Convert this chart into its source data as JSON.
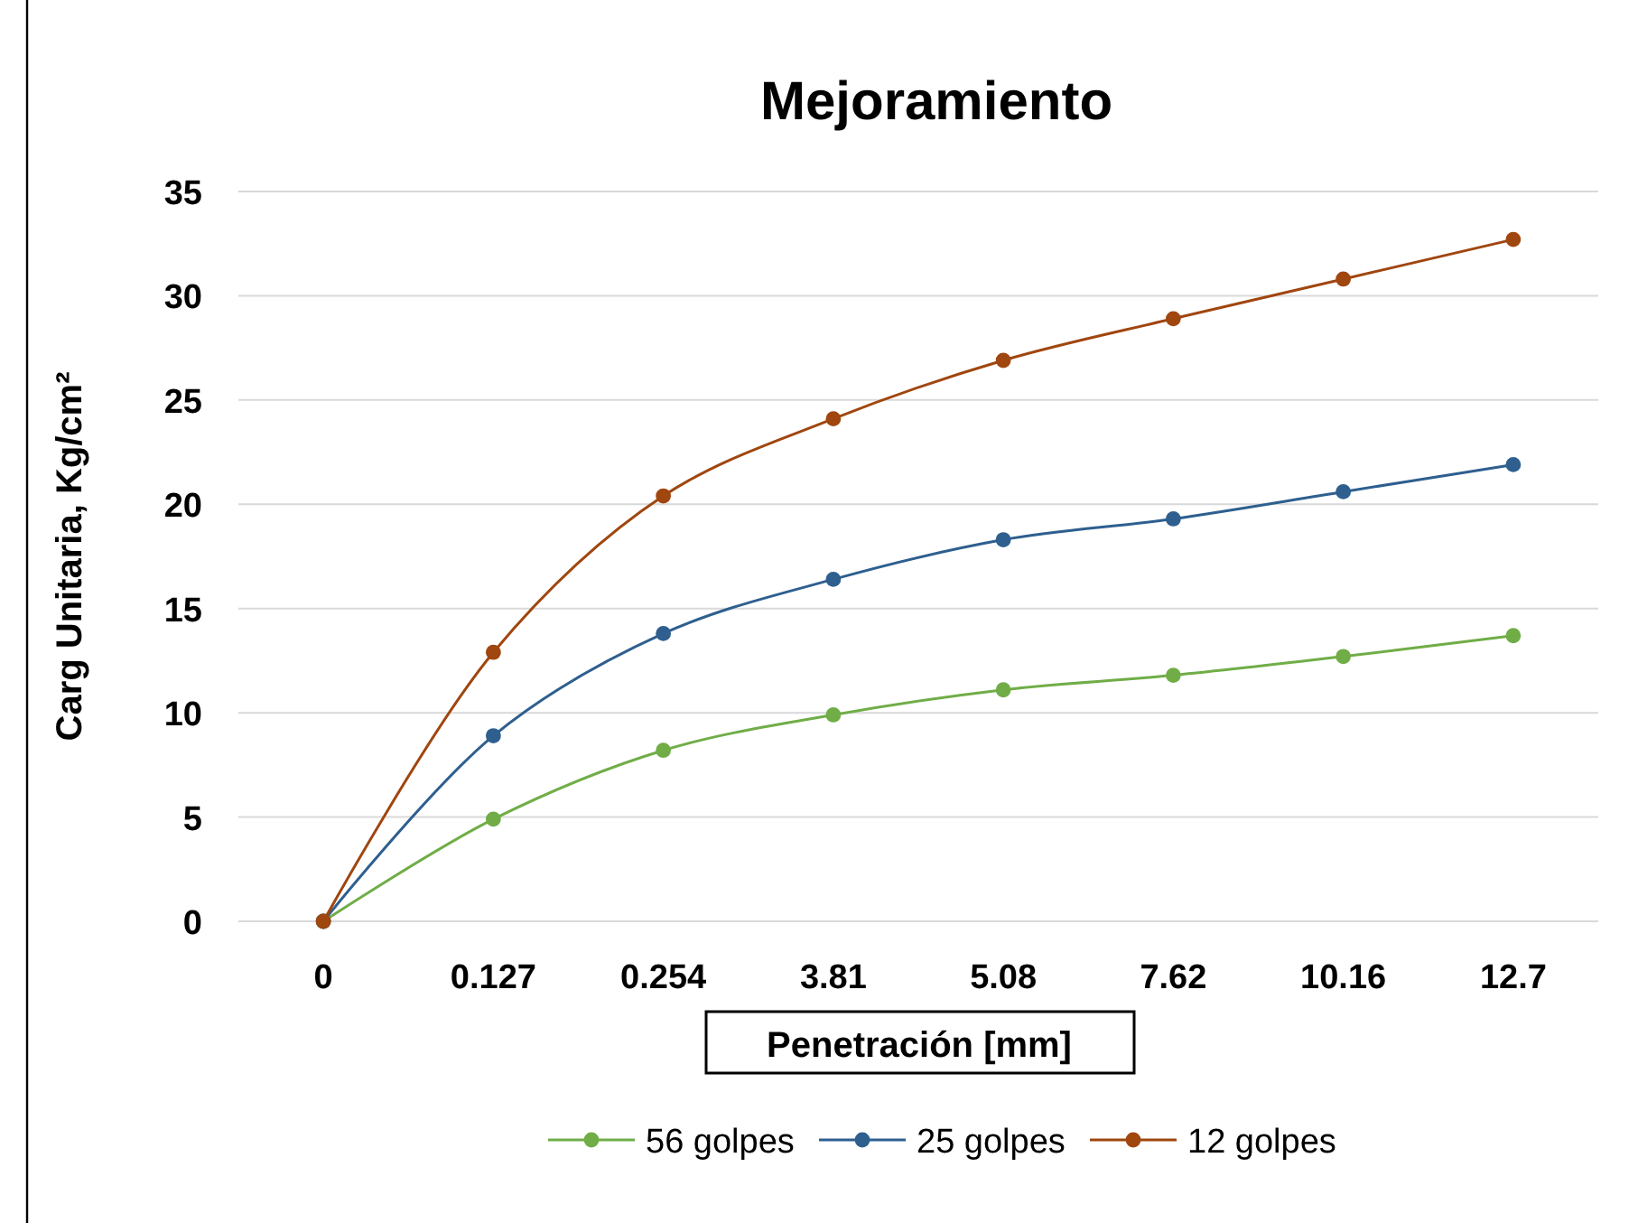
{
  "chart_data": {
    "type": "line",
    "title": "Mejoramiento",
    "xlabel": "Penetración [mm]",
    "ylabel": "Carg Unitaria, Kg/cm²",
    "categories": [
      "0",
      "0.127",
      "0.254",
      "3.81",
      "5.08",
      "7.62",
      "10.16",
      "12.7"
    ],
    "series": [
      {
        "name": "56 golpes",
        "color": "#70ad47",
        "values": [
          0,
          4.9,
          8.2,
          9.9,
          11.1,
          11.8,
          12.7,
          13.7
        ]
      },
      {
        "name": "25 golpes",
        "color": "#2e5f8f",
        "values": [
          0,
          8.9,
          13.8,
          16.4,
          18.3,
          19.3,
          20.6,
          21.9
        ]
      },
      {
        "name": "12 golpes",
        "color": "#a0460f",
        "values": [
          0,
          12.9,
          20.4,
          24.1,
          26.9,
          28.9,
          30.8,
          32.7
        ]
      }
    ],
    "ylim": [
      0,
      35
    ],
    "yticks": [
      0,
      5,
      10,
      15,
      20,
      25,
      30,
      35
    ],
    "grid": "y",
    "legend": "bottom",
    "marker": "circle",
    "line_style": "solid"
  }
}
